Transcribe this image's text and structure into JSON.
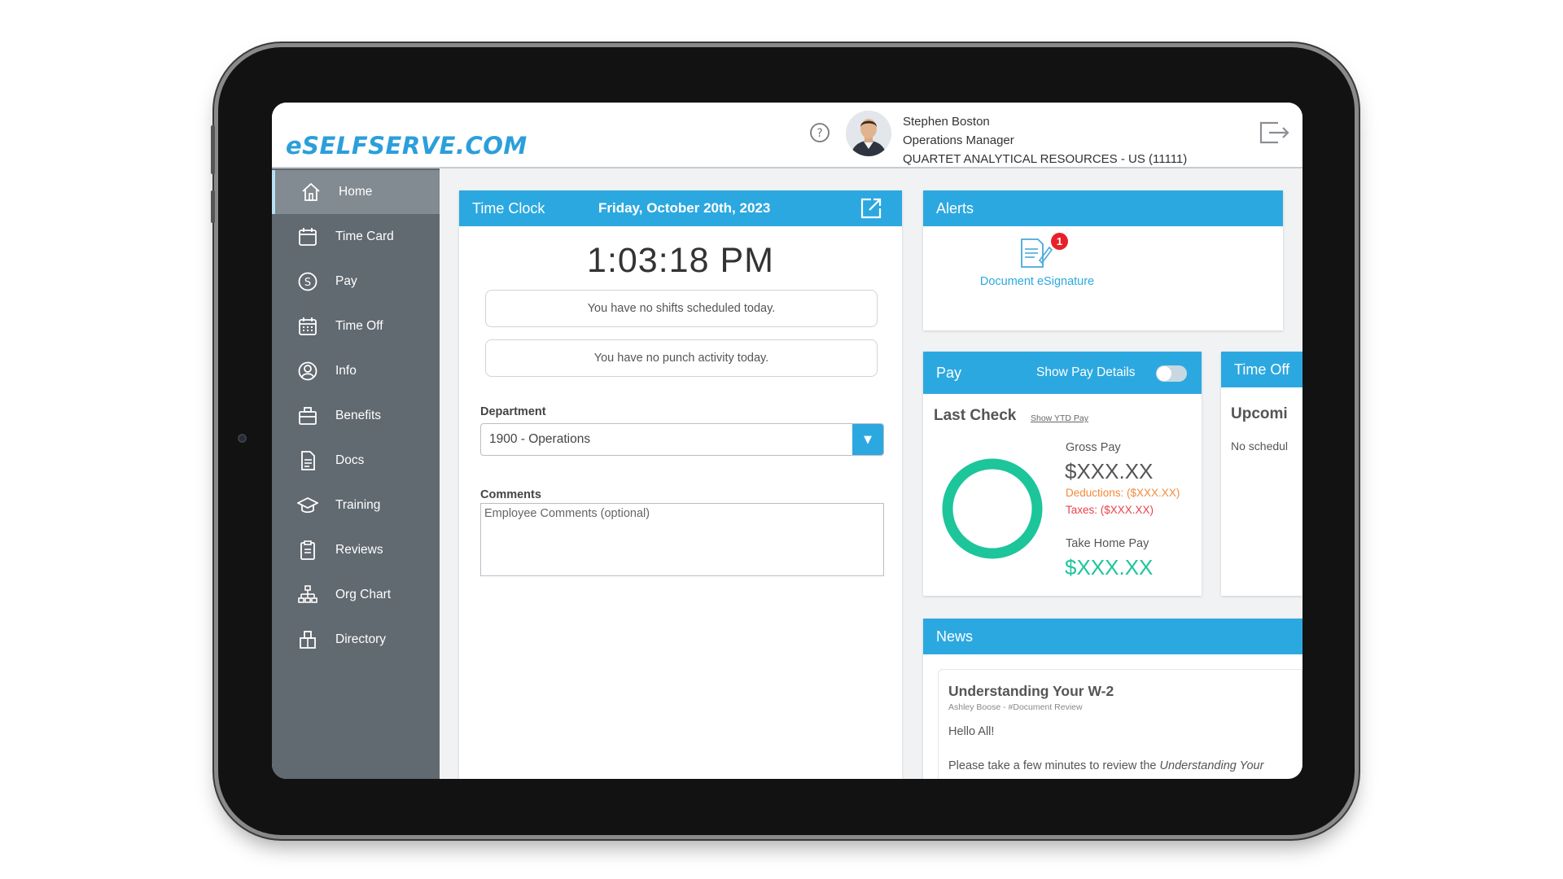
{
  "header": {
    "logo": "eSELFSERVE.COM",
    "user_name": "Stephen Boston",
    "user_title": "Operations Manager",
    "company": "QUARTET ANALYTICAL RESOURCES - US (11111)"
  },
  "sidebar": {
    "items": [
      {
        "label": "Home",
        "icon": "home-icon"
      },
      {
        "label": "Time Card",
        "icon": "calendar-icon"
      },
      {
        "label": "Pay",
        "icon": "dollar-icon"
      },
      {
        "label": "Time Off",
        "icon": "calendar-grid-icon"
      },
      {
        "label": "Info",
        "icon": "user-circle-icon"
      },
      {
        "label": "Benefits",
        "icon": "briefcase-icon"
      },
      {
        "label": "Docs",
        "icon": "document-icon"
      },
      {
        "label": "Training",
        "icon": "graduation-cap-icon"
      },
      {
        "label": "Reviews",
        "icon": "clipboard-icon"
      },
      {
        "label": "Org Chart",
        "icon": "org-chart-icon"
      },
      {
        "label": "Directory",
        "icon": "directory-icon"
      }
    ]
  },
  "time_clock": {
    "title": "Time Clock",
    "date": "Friday, October 20th, 2023",
    "time": "1:03:18 PM",
    "no_shifts": "You have no shifts scheduled today.",
    "no_punch": "You have no punch activity today.",
    "department_label": "Department",
    "department_value": "1900 - Operations",
    "comments_label": "Comments",
    "comments_placeholder": "Employee Comments (optional)"
  },
  "alerts": {
    "title": "Alerts",
    "badge_count": "1",
    "item_label": "Document eSignature"
  },
  "pay": {
    "title": "Pay",
    "toggle_label": "Show Pay Details",
    "last_check": "Last Check",
    "ytd_link": "Show YTD Pay",
    "gross_label": "Gross Pay",
    "gross_value": "$XXX.XX",
    "deductions": "Deductions: ($XXX.XX)",
    "taxes": "Taxes: ($XXX.XX)",
    "take_home_label": "Take Home Pay",
    "take_home_value": "$XXX.XX"
  },
  "time_off": {
    "title": "Time Off",
    "subtitle": "Upcomi",
    "text": "No schedul"
  },
  "news": {
    "title": "News",
    "article_title": "Understanding Your W-2",
    "article_meta": "Ashley Boose - #Document Review",
    "greeting": "Hello All!",
    "body_start": "Please take a few minutes to review the ",
    "body_italic": "Understanding Your"
  },
  "colors": {
    "accent": "#2ca8e0",
    "sidebar": "#616971",
    "green": "#1dc59b",
    "deduction": "#f08a3c",
    "tax": "#e8424a",
    "badge": "#e8202a"
  }
}
